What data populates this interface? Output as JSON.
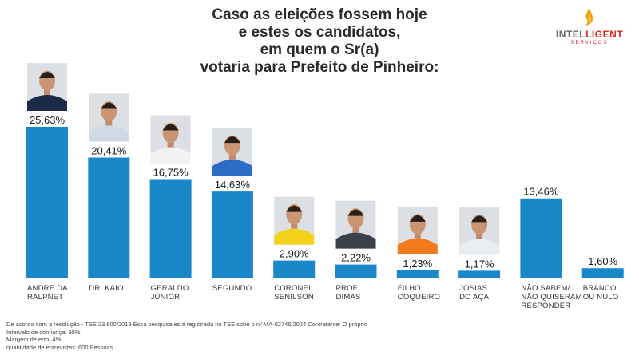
{
  "title_lines": [
    "Caso as eleições fossem hoje",
    "e estes os candidatos,",
    "em quem o Sr(a)",
    "votaria para Prefeito de Pinheiro:"
  ],
  "logo": {
    "word_a": "INTEL",
    "word_b": "LIGENT",
    "sub": "SERVIÇOS",
    "icon": "flame-icon"
  },
  "chart_data": {
    "type": "bar",
    "title": "Caso as eleições fossem hoje e estes os candidatos, em quem o Sr(a) votaria para Prefeito de Pinheiro:",
    "categories": [
      [
        "ANDRE DA",
        "RALPNET"
      ],
      [
        "DR. KAIO"
      ],
      [
        "GERALDO",
        "JÚNIOR"
      ],
      [
        "SEGUNDO"
      ],
      [
        "CORONEL",
        "SENILSON"
      ],
      [
        "PROF.",
        "DIMAS"
      ],
      [
        "FILHO",
        "COQUEIRO"
      ],
      [
        "JOSIAS",
        "DO AÇAI"
      ],
      [
        "NÃO SABEM/",
        "NÃO QUISERAM",
        "RESPONDER"
      ],
      [
        "BRANCO",
        "OU NULO"
      ]
    ],
    "values": [
      25.63,
      20.41,
      16.75,
      14.63,
      2.9,
      2.22,
      1.23,
      1.17,
      13.46,
      1.6
    ],
    "value_labels": [
      "25,63%",
      "20,41%",
      "16,75%",
      "14,63%",
      "2,90%",
      "2,22%",
      "1,23%",
      "1,17%",
      "13,46%",
      "1,60%"
    ],
    "photos": [
      true,
      true,
      true,
      true,
      true,
      true,
      true,
      true,
      false,
      false
    ],
    "shirt_colors": [
      "#1c2a4a",
      "#cfd8e4",
      "#f2f2f2",
      "#2b6cc4",
      "#f3d21c",
      "#3a3f4a",
      "#f07a1c",
      "#e8edf3",
      "",
      ""
    ],
    "bar_color": "#1a87c8",
    "ylim": [
      0,
      25.63
    ],
    "xlabel": "",
    "ylabel": "",
    "grid": false,
    "legend": "none"
  },
  "footer_lines": [
    "De acordo com a resolução - TSE 23.600/2019 Essa pesquisa está registrada no TSE sobe o nº  MA-02746/2024 Contratante: O próprio",
    "Intervalo de confiança: 95%",
    "Margem de erro: 4%",
    "quantidade de entrevistas: 600 Pessoas"
  ]
}
